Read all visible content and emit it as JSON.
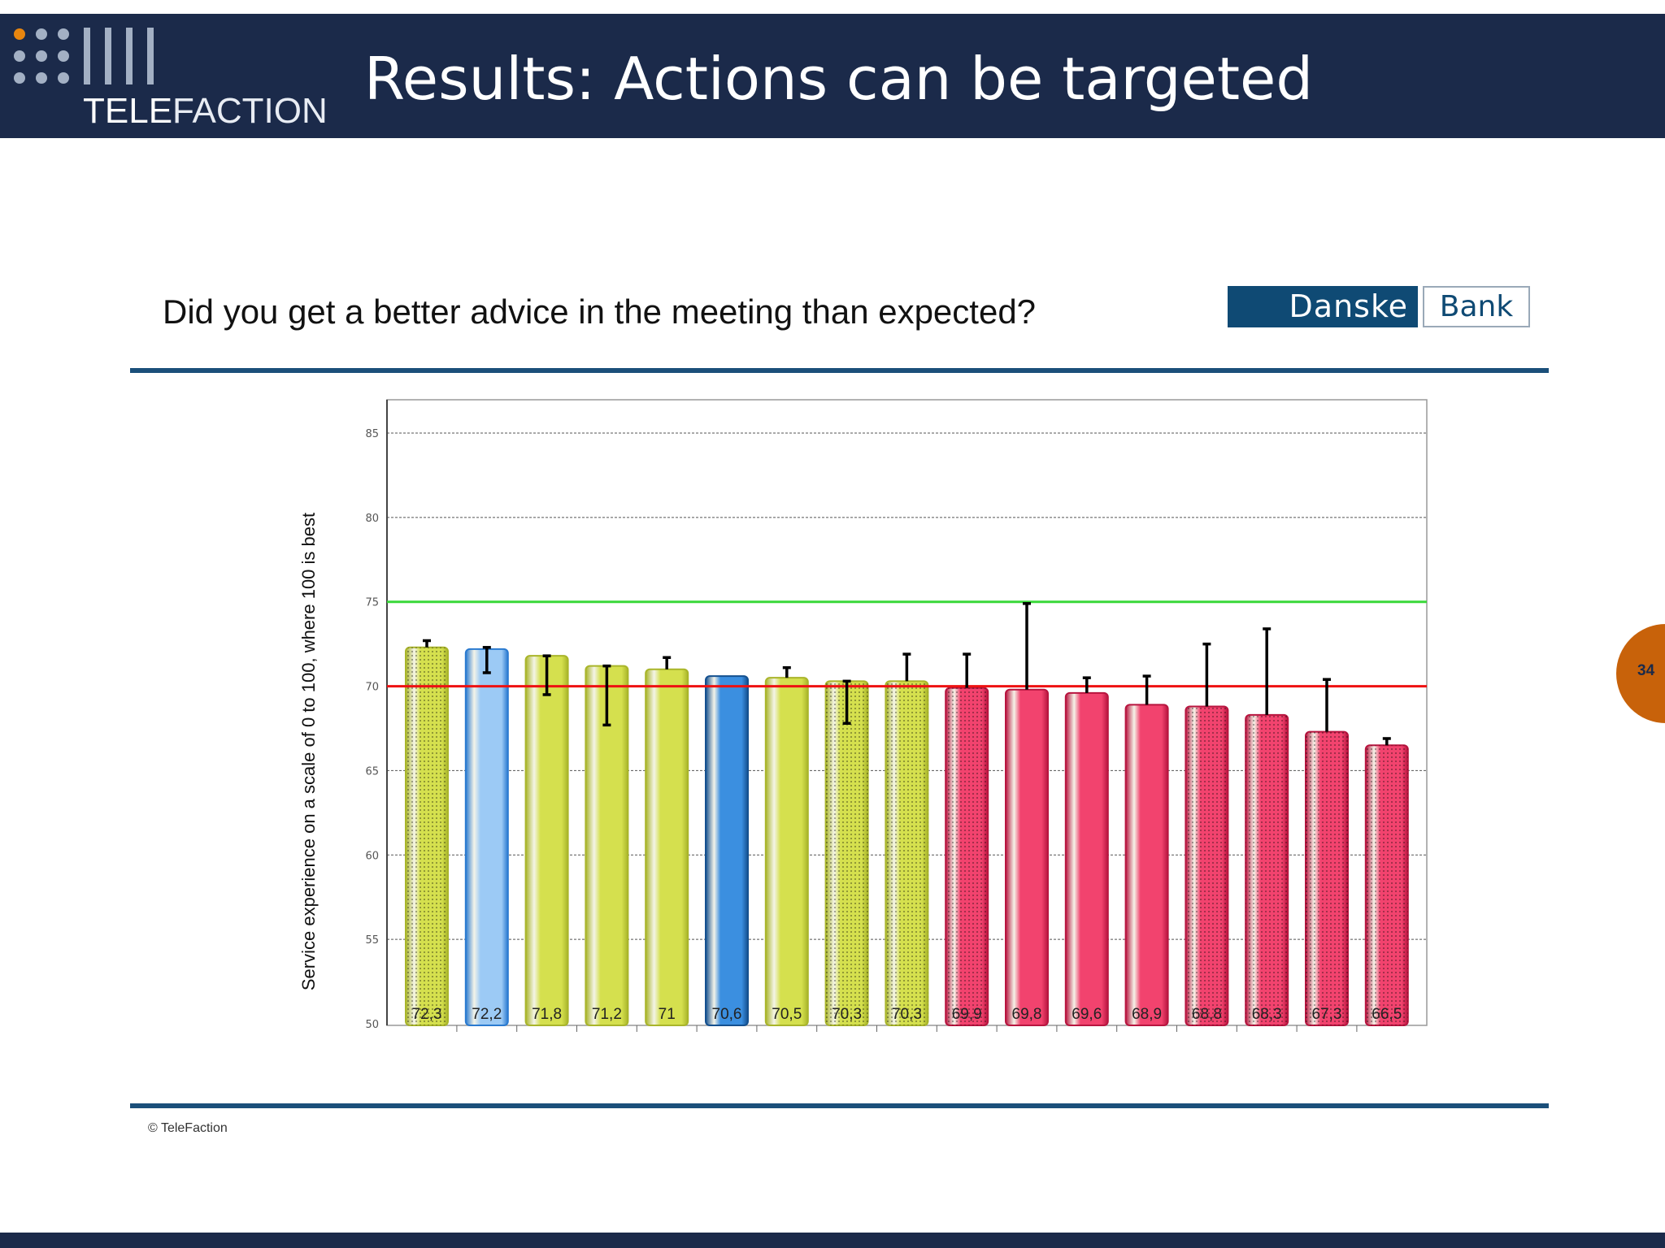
{
  "header": {
    "logo_text_bold": "TELE",
    "logo_text_light": "FACTION",
    "title": "Results: Actions can be targeted"
  },
  "question": "Did you get a better advice in the meeting than expected?",
  "brand_logo": {
    "part1": "Danske",
    "part2": "Bank"
  },
  "footer": {
    "copyright": "© TeleFaction"
  },
  "page_number": "34",
  "colors": {
    "header_bg": "#1b2a4a",
    "accent_orange": "#c8620a",
    "rule": "#1b4f7a",
    "green_bar": "#c4d23a",
    "blue_bar": "#3a8ee0",
    "dark_blue_bar": "#1f6fc4",
    "red_bar": "#e0285a",
    "target_line": "#39d839",
    "reference_line": "#ee1111"
  },
  "chart_data": {
    "type": "bar",
    "ylabel": "Service experience on a scale of 0 to 100, where 100 is best",
    "ylim": [
      50,
      87
    ],
    "yticks": [
      "50",
      "55",
      "60",
      "65",
      "70",
      "75",
      "80",
      "85"
    ],
    "grid": true,
    "reference_lines": [
      {
        "value": 75,
        "color": "#39d839"
      },
      {
        "value": 70,
        "color": "#ee1111"
      }
    ],
    "values": [
      72.3,
      72.2,
      71.8,
      71.2,
      71,
      70.6,
      70.5,
      70.3,
      70.3,
      69.9,
      69.8,
      69.6,
      68.9,
      68.8,
      68.3,
      67.3,
      66.5
    ],
    "labels": [
      "72,3",
      "72,2",
      "71,8",
      "71,2",
      "71",
      "70,6",
      "70,5",
      "70,3",
      "70,3",
      "69,9",
      "69,8",
      "69,6",
      "68,9",
      "68,8",
      "68,3",
      "67,3",
      "66,5"
    ],
    "bar_colors": [
      "green",
      "blue",
      "green",
      "green",
      "green",
      "darkblue",
      "green",
      "green",
      "green",
      "red",
      "red",
      "red",
      "red",
      "red",
      "red",
      "red",
      "red"
    ],
    "patterned": [
      true,
      false,
      false,
      false,
      false,
      false,
      false,
      true,
      true,
      true,
      false,
      false,
      false,
      true,
      true,
      true,
      true
    ],
    "error_bars": [
      [
        72.3,
        72.7
      ],
      [
        70.8,
        72.3
      ],
      [
        69.5,
        71.8
      ],
      [
        67.7,
        71.2
      ],
      [
        71.0,
        71.7
      ],
      null,
      [
        70.5,
        71.1
      ],
      [
        67.8,
        70.3
      ],
      [
        70.3,
        71.9
      ],
      [
        69.9,
        71.9
      ],
      [
        69.8,
        74.9
      ],
      [
        69.6,
        70.5
      ],
      [
        68.9,
        70.6
      ],
      [
        68.8,
        72.5
      ],
      [
        68.3,
        73.4
      ],
      [
        67.3,
        70.4
      ],
      [
        66.5,
        66.9
      ]
    ]
  }
}
